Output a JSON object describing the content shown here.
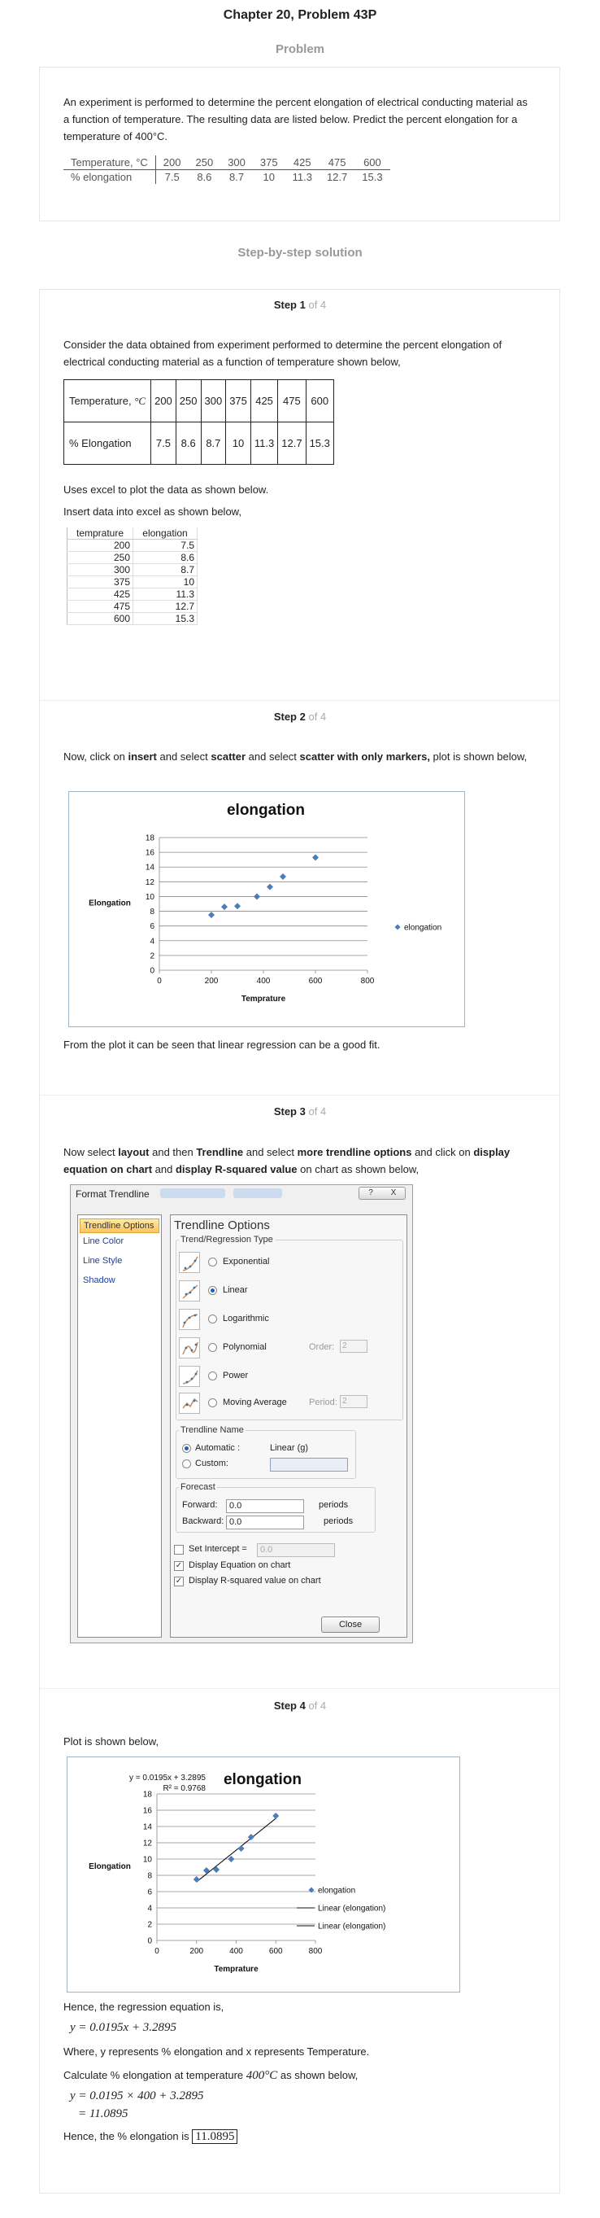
{
  "page_title": "Chapter 20, Problem 43P",
  "problem": {
    "heading": "Problem",
    "text": "An experiment is performed to determine the percent elongation of electrical conducting material as a function of temperature. The resulting data are listed below. Predict the percent elongation for a temperature of 400°C.",
    "table": {
      "row1_label": "Temperature, °C",
      "row2_label": "% elongation",
      "temps": [
        "200",
        "250",
        "300",
        "375",
        "425",
        "475",
        "600"
      ],
      "elong": [
        "7.5",
        "8.6",
        "8.7",
        "10",
        "11.3",
        "12.7",
        "15.3"
      ]
    }
  },
  "solution_heading": "Step-by-step solution",
  "steps": {
    "of_label": "of 4",
    "step1": {
      "label": "Step 1",
      "intro": "Consider the data obtained from experiment performed to determine the percent elongation of electrical conducting material as a function of temperature shown below,",
      "row1_label": "Temperature,",
      "row1_unit": "°C",
      "row2_label": "% Elongation",
      "uses_excel": "Uses excel to plot the data as shown below.",
      "insert_data": "Insert data into excel as shown below,",
      "excel_headers": [
        "temprature",
        "elongation"
      ]
    },
    "step2": {
      "label": "Step 2",
      "text_a": "Now, click on ",
      "text_b": "insert",
      "text_c": " and select ",
      "text_d": "scatter",
      "text_e": " and select ",
      "text_f": "scatter with only markers,",
      "text_g": " plot is shown below,",
      "conclusion": "From the plot it can be seen that linear regression can be a good fit."
    },
    "step3": {
      "label": "Step 3",
      "t1": "Now select ",
      "t2": "layout",
      "t3": " and then ",
      "t4": "Trendline",
      "t5": " and select ",
      "t6": "more trendline options",
      "t7": " and click on ",
      "t8": "display equation on chart",
      "t9": " and ",
      "t10": "display R-squared value",
      "t11": " on chart as shown below,"
    },
    "step4": {
      "label": "Step 4",
      "intro": "Plot is shown below,",
      "hence1": "Hence, the regression equation is,",
      "equation": "y = 0.0195x + 3.2895",
      "where": "Where, y represents % elongation and x represents Temperature.",
      "calc": "Calculate % elongation at temperature",
      "calc_temp": "400°C",
      "calc_tail": "as shown below,",
      "line1": "y = 0.0195 × 400 + 3.2895",
      "line2": "= 11.0895",
      "final": "Hence, the % elongation is",
      "answer": "11.0895"
    }
  },
  "dialog": {
    "title": "Format Trendline",
    "help": "?",
    "close_x": "X",
    "nav": [
      "Trendline Options",
      "Line Color",
      "Line Style",
      "Shadow"
    ],
    "panel_title": "Trendline Options",
    "type_group": "Trend/Regression Type",
    "types": [
      "Exponential",
      "Linear",
      "Logarithmic",
      "Polynomial",
      "Power",
      "Moving Average"
    ],
    "selected_type": "Linear",
    "order_label": "Order:",
    "order_value": "2",
    "period_label": "Period:",
    "period_value": "2",
    "name_group": "Trendline Name",
    "automatic": "Automatic :",
    "automatic_value": "Linear (g)",
    "custom": "Custom:",
    "forecast_group": "Forecast",
    "forward": "Forward:",
    "forward_value": "0.0",
    "backward": "Backward:",
    "backward_value": "0.0",
    "periods": "periods",
    "set_intercept": "Set Intercept =",
    "intercept_value": "0.0",
    "display_equation": "Display Equation on chart",
    "display_r2": "Display R-squared value on chart",
    "close_button": "Close"
  },
  "chart_data": [
    {
      "type": "scatter",
      "title": "elongation",
      "xlabel": "Temprature",
      "ylabel": "Elongation",
      "x": [
        200,
        250,
        300,
        375,
        425,
        475,
        600
      ],
      "y": [
        7.5,
        8.6,
        8.7,
        10,
        11.3,
        12.7,
        15.3
      ],
      "xlim": [
        0,
        800
      ],
      "ylim": [
        0,
        18
      ],
      "xticks": [
        "0",
        "200",
        "400",
        "600",
        "800"
      ],
      "yticks": [
        "0",
        "2",
        "4",
        "6",
        "8",
        "10",
        "12",
        "14",
        "16",
        "18"
      ],
      "legend": [
        "elongation"
      ],
      "legend_position": "right",
      "grid": true,
      "marker_color": "#4a7ebb"
    },
    {
      "type": "scatter",
      "title": "elongation",
      "xlabel": "Temprature",
      "ylabel": "Elongation",
      "x": [
        200,
        250,
        300,
        375,
        425,
        475,
        600
      ],
      "y": [
        7.5,
        8.6,
        8.7,
        10,
        11.3,
        12.7,
        15.3
      ],
      "xlim": [
        0,
        800
      ],
      "ylim": [
        0,
        18
      ],
      "xticks": [
        "0",
        "200",
        "400",
        "600",
        "800"
      ],
      "yticks": [
        "0",
        "2",
        "4",
        "6",
        "8",
        "10",
        "12",
        "14",
        "16",
        "18"
      ],
      "legend": [
        "elongation",
        "Linear (elongation)",
        "Linear (elongation)"
      ],
      "legend_position": "right",
      "grid": true,
      "trendline": {
        "slope": 0.0195,
        "intercept": 3.2895
      },
      "equation_label": "y = 0.0195x + 3.2895",
      "r2_label": "R² = 0.9768",
      "marker_color": "#4a7ebb"
    }
  ]
}
